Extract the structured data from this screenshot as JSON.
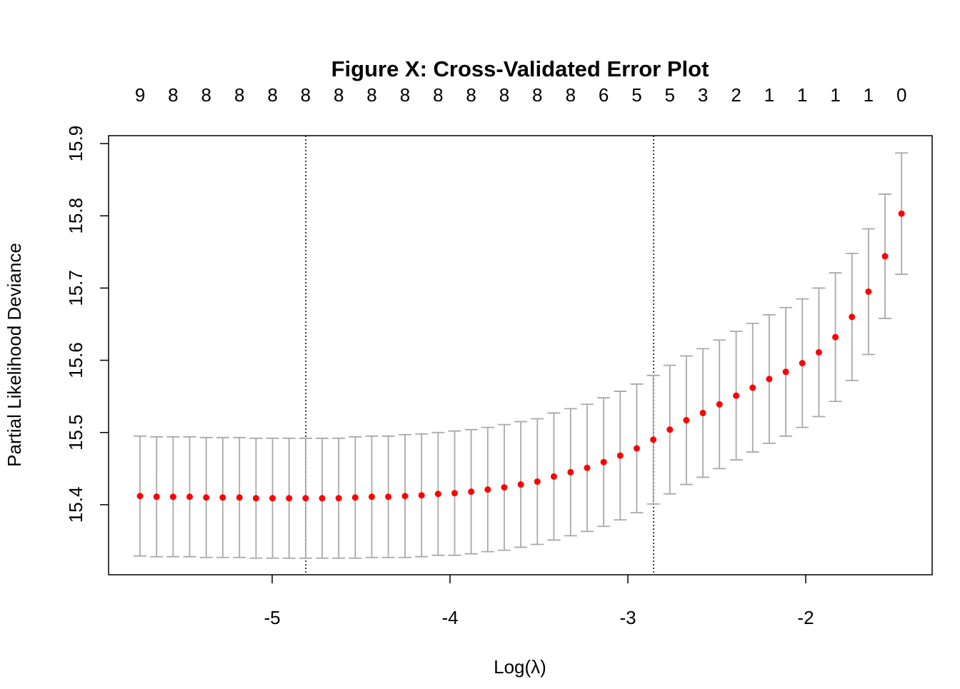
{
  "chart_data": {
    "type": "errorbar-scatter",
    "title": "Figure X: Cross-Validated Error Plot",
    "xlabel": "Log(λ)",
    "ylabel": "Partial Likelihood Deviance",
    "x": [
      -5.743,
      -5.65,
      -5.557,
      -5.464,
      -5.371,
      -5.278,
      -5.184,
      -5.091,
      -4.998,
      -4.905,
      -4.812,
      -4.719,
      -4.626,
      -4.533,
      -4.44,
      -4.347,
      -4.253,
      -4.16,
      -4.067,
      -3.974,
      -3.881,
      -3.788,
      -3.695,
      -3.602,
      -3.509,
      -3.416,
      -3.322,
      -3.229,
      -3.136,
      -3.043,
      -2.95,
      -2.857,
      -2.764,
      -2.671,
      -2.578,
      -2.485,
      -2.391,
      -2.298,
      -2.205,
      -2.112,
      -2.019,
      -1.926,
      -1.833,
      -1.74,
      -1.647,
      -1.554,
      -1.461
    ],
    "series": [
      {
        "color": "#ff0000",
        "error_color": "#a9a9a9",
        "values": [
          15.412,
          15.411,
          15.411,
          15.411,
          15.41,
          15.41,
          15.41,
          15.409,
          15.409,
          15.409,
          15.409,
          15.409,
          15.409,
          15.41,
          15.411,
          15.411,
          15.412,
          15.413,
          15.415,
          15.416,
          15.418,
          15.421,
          15.424,
          15.428,
          15.432,
          15.439,
          15.445,
          15.451,
          15.459,
          15.468,
          15.478,
          15.49,
          15.504,
          15.517,
          15.527,
          15.539,
          15.551,
          15.562,
          15.574,
          15.584,
          15.596,
          15.611,
          15.632,
          15.66,
          15.695,
          15.744,
          15.803
        ],
        "errors": [
          0.083,
          0.083,
          0.083,
          0.083,
          0.083,
          0.083,
          0.083,
          0.083,
          0.083,
          0.083,
          0.083,
          0.083,
          0.083,
          0.084,
          0.084,
          0.084,
          0.085,
          0.085,
          0.085,
          0.086,
          0.086,
          0.086,
          0.087,
          0.087,
          0.087,
          0.088,
          0.088,
          0.088,
          0.089,
          0.089,
          0.089,
          0.089,
          0.089,
          0.089,
          0.089,
          0.089,
          0.089,
          0.089,
          0.089,
          0.089,
          0.089,
          0.089,
          0.089,
          0.088,
          0.087,
          0.086,
          0.084
        ]
      }
    ],
    "top_labels": [
      9,
      8,
      8,
      8,
      8,
      8,
      8,
      8,
      8,
      8,
      8,
      8,
      8,
      8,
      6,
      5,
      5,
      3,
      2,
      1,
      1,
      1,
      1,
      0
    ],
    "vlines": [
      -4.811,
      -2.855
    ],
    "xlim": [
      -5.92,
      -1.289
    ],
    "xticks": [
      -5,
      -4,
      -3,
      -2
    ],
    "ylim": [
      15.303,
      15.911
    ],
    "yticks": [
      15.4,
      15.5,
      15.6,
      15.7,
      15.8,
      15.9
    ]
  }
}
